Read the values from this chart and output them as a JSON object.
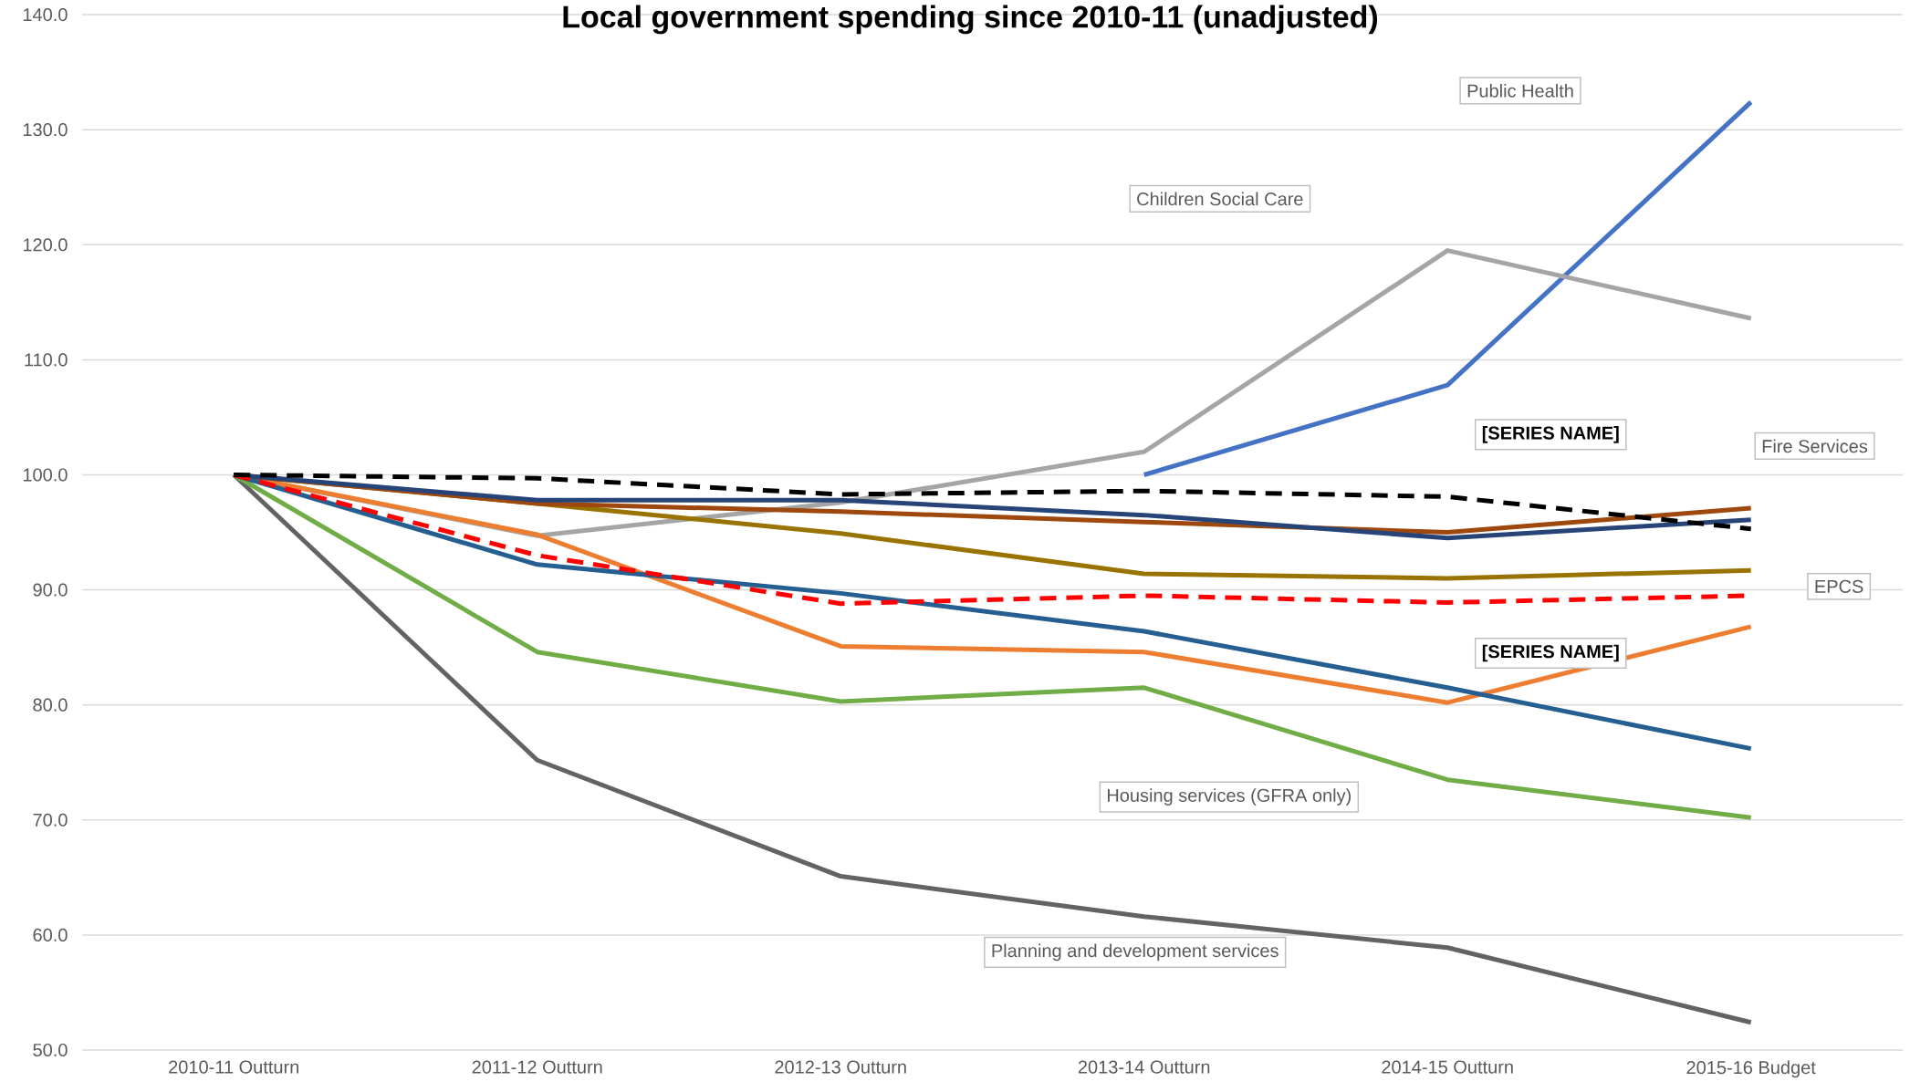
{
  "chart_data": {
    "type": "line",
    "title": "Local government spending since 2010-11 (unadjusted)",
    "categories": [
      "2010-11 Outturn",
      "2011-12 Outturn",
      "2012-13 Outturn",
      "2013-14 Outturn",
      "2014-15 Outturn",
      "2015-16  Budget"
    ],
    "series": [
      {
        "color": "#4472c4",
        "values": [
          null,
          null,
          null,
          100.0,
          107.8,
          132.4
        ]
      },
      {
        "color": "#a5a5a5",
        "values": [
          100.0,
          94.7,
          97.6,
          102.0,
          119.5,
          113.6
        ]
      },
      {
        "color": "#636363",
        "values": [
          100.0,
          75.2,
          65.1,
          61.6,
          58.9,
          52.4
        ]
      },
      {
        "color": "#70ad47",
        "values": [
          100.0,
          84.6,
          80.3,
          81.5,
          73.5,
          70.2
        ]
      },
      {
        "color": "#ed7d31",
        "values": [
          100.0,
          94.8,
          85.1,
          84.6,
          80.2,
          86.8
        ]
      },
      {
        "color": "#255e91",
        "values": [
          100.0,
          92.2,
          89.7,
          86.4,
          81.5,
          76.2
        ]
      },
      {
        "color": "#997300",
        "values": [
          100.0,
          97.5,
          94.9,
          91.4,
          91.0,
          91.7
        ]
      },
      {
        "color": "#9e480e",
        "values": [
          100.0,
          97.5,
          96.8,
          95.9,
          95.0,
          97.1
        ]
      },
      {
        "color": "#264478",
        "values": [
          100.0,
          97.8,
          97.8,
          96.5,
          94.5,
          96.1
        ]
      },
      {
        "color": "#ff0000",
        "line_style": "dashed",
        "values": [
          100.0,
          93.0,
          88.8,
          89.5,
          88.9,
          89.5
        ]
      },
      {
        "color": "#000000",
        "line_style": "dashed",
        "values": [
          100.0,
          99.7,
          98.3,
          98.6,
          98.1,
          95.3
        ]
      }
    ],
    "ylim": [
      50,
      140
    ],
    "yticks": [
      {
        "value": 50,
        "label": "50.0"
      },
      {
        "value": 60,
        "label": "60.0"
      },
      {
        "value": 70,
        "label": "70.0"
      },
      {
        "value": 80,
        "label": "80.0"
      },
      {
        "value": 90,
        "label": "90.0"
      },
      {
        "value": 100,
        "label": "100.0"
      },
      {
        "value": 110,
        "label": "110.0"
      },
      {
        "value": 120,
        "label": "120.0"
      },
      {
        "value": 130,
        "label": "130.0"
      },
      {
        "value": 140,
        "label": "140.0"
      }
    ],
    "grid": "y",
    "annotations": [
      "Public Health",
      "Children Social Care",
      "[SERIES NAME]",
      "Fire Services",
      "EPCS",
      "[SERIES NAME]",
      "Housing services (GFRA only)",
      "Planning and development services"
    ]
  }
}
